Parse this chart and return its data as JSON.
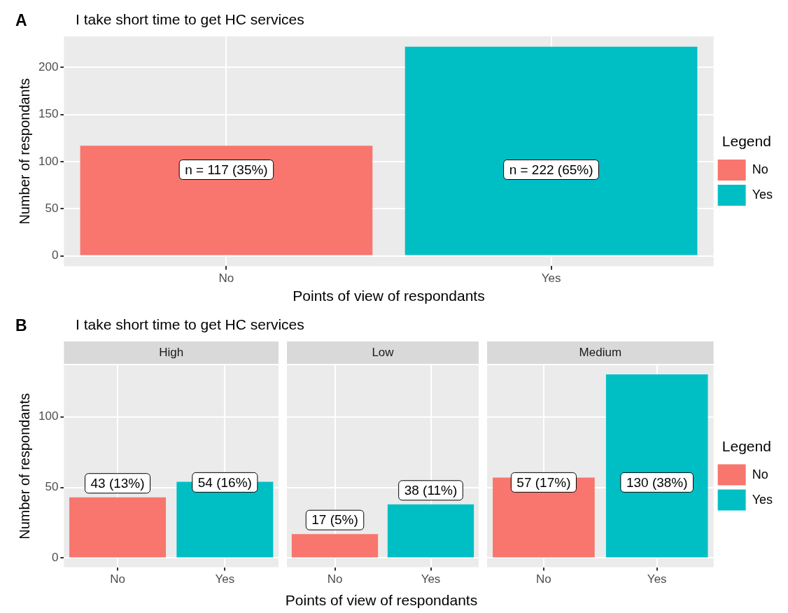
{
  "chart_data": [
    {
      "type": "bar",
      "title": "I take short time to get HC services",
      "xlabel": "Points of view of respondants",
      "ylabel": "Number of respondants",
      "legend_title": "Legend",
      "annotations": [
        "A"
      ],
      "categories": [
        "No",
        "Yes"
      ],
      "series": [
        {
          "name": "No",
          "color": "#f8766d",
          "values": [
            117,
            null
          ],
          "value_labels": [
            "n = 117 (35%)",
            null
          ]
        },
        {
          "name": "Yes",
          "color": "#00bfc4",
          "values": [
            null,
            222
          ],
          "value_labels": [
            null,
            "n = 222 (65%)"
          ]
        }
      ],
      "ylim": [
        -11,
        233
      ],
      "yticks": [
        0,
        50,
        100,
        150,
        200
      ],
      "grid": true,
      "legend": "right"
    },
    {
      "type": "bar",
      "title": "I take short time to get HC services",
      "subtitle": "High",
      "xlabel": "Points of view of respondants",
      "ylabel": "Number of respondants",
      "annotations": [
        "B"
      ],
      "categories": [
        "No",
        "Yes"
      ],
      "series": [
        {
          "color": "#f8766d",
          "values": [
            43,
            null
          ],
          "value_labels": [
            "43 (13%)",
            null
          ]
        },
        {
          "color": "#00bfc4",
          "values": [
            null,
            54
          ],
          "value_labels": [
            null,
            "54 (16%)"
          ]
        }
      ],
      "ylim": [
        -6.5,
        136.5
      ],
      "yticks": [
        0,
        50,
        100
      ],
      "grid": true
    },
    {
      "type": "bar",
      "subtitle": "Low",
      "categories": [
        "No",
        "Yes"
      ],
      "series": [
        {
          "color": "#f8766d",
          "values": [
            17,
            null
          ],
          "value_labels": [
            "17 (5%)",
            null
          ]
        },
        {
          "color": "#00bfc4",
          "values": [
            null,
            38
          ],
          "value_labels": [
            null,
            "38 (11%)"
          ]
        }
      ],
      "ylim": [
        -6.5,
        136.5
      ],
      "yticks": [
        0,
        50,
        100
      ],
      "grid": true,
      "tick_labels": "x"
    },
    {
      "type": "bar",
      "subtitle": "Medium",
      "legend_title": "Legend",
      "categories": [
        "No",
        "Yes"
      ],
      "series": [
        {
          "name": "No",
          "color": "#f8766d",
          "values": [
            57,
            null
          ],
          "value_labels": [
            "57 (17%)",
            null
          ]
        },
        {
          "name": "Yes",
          "color": "#00bfc4",
          "values": [
            null,
            130
          ],
          "value_labels": [
            null,
            "130 (38%)"
          ]
        }
      ],
      "ylim": [
        -6.5,
        136.5
      ],
      "yticks": [
        0,
        50,
        100
      ],
      "grid": true,
      "tick_labels": "x",
      "legend": "right"
    }
  ]
}
